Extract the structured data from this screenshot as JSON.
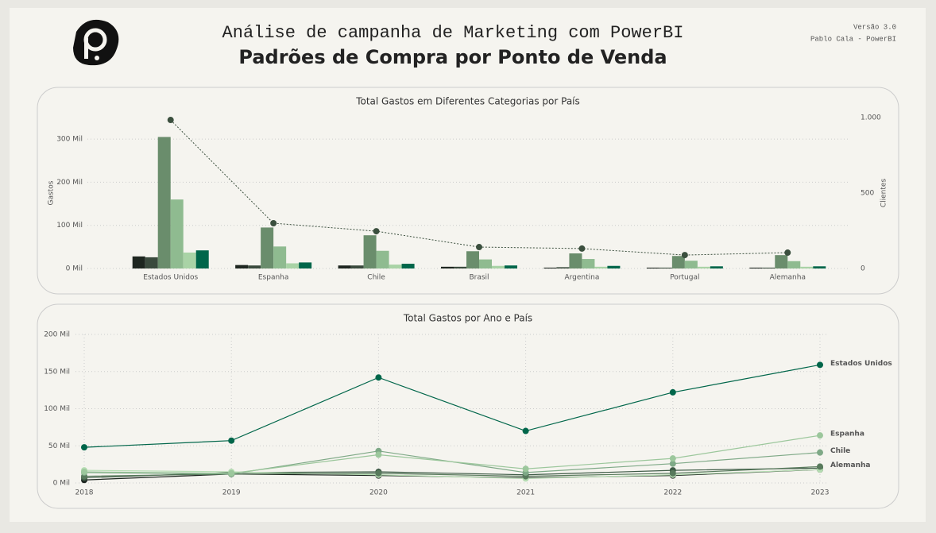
{
  "header": {
    "title": "Análise de campanha de Marketing com PowerBI",
    "subtitle": "Padrões de Compra por Ponto de Venda",
    "version": "Versão 3.0",
    "author": "Pablo Cala - PowerBI"
  },
  "chart_data": [
    {
      "type": "bar",
      "title": "Total Gastos em Diferentes Categorias por País",
      "y_label": "Gastos",
      "y2_label": "Clientes",
      "categories": [
        "Estados Unidos",
        "Espanha",
        "Chile",
        "Brasil",
        "Argentina",
        "Portugal",
        "Alemanha"
      ],
      "series": [
        {
          "color": "#1e2620",
          "values": [
            28000,
            8000,
            7000,
            4000,
            2000,
            2000,
            2000
          ]
        },
        {
          "color": "#3a4a3d",
          "values": [
            26000,
            7000,
            7000,
            4000,
            3000,
            2000,
            2000
          ]
        },
        {
          "color": "#6a8d6c",
          "values": [
            305000,
            95000,
            77000,
            40000,
            35000,
            29000,
            31000
          ]
        },
        {
          "color": "#8fbb90",
          "values": [
            160000,
            51000,
            41000,
            21000,
            22000,
            18000,
            17000
          ]
        },
        {
          "color": "#a9d3a6",
          "values": [
            37000,
            12000,
            9000,
            6000,
            4000,
            4000,
            4000
          ]
        },
        {
          "color": "#00664a",
          "values": [
            42000,
            14000,
            11000,
            7000,
            6000,
            5000,
            5000
          ]
        },
        {
          "type": "line",
          "axis": "y2",
          "color": "#3b4f3e",
          "line_style": "dotted",
          "values": [
            984,
            300,
            247,
            142,
            132,
            89,
            105
          ]
        }
      ],
      "ylim": [
        0,
        350000
      ],
      "yticks": [
        {
          "value": 0,
          "label": "0 Mil"
        },
        {
          "value": 100000,
          "label": "100 Mil"
        },
        {
          "value": 200000,
          "label": "200 Mil"
        },
        {
          "value": 300000,
          "label": "300 Mil"
        }
      ],
      "y2lim": [
        0,
        1000
      ],
      "y2ticks": [
        0,
        500,
        {
          "value": 1000,
          "label": "1.000"
        }
      ],
      "grid": true
    },
    {
      "type": "line",
      "title": "Total Gastos por Ano e País",
      "x": [
        2018,
        2019,
        2020,
        2021,
        2022,
        2023
      ],
      "xlim": [
        2018,
        2023
      ],
      "xticks": [
        2018,
        2019,
        2020,
        2021,
        2022,
        2023
      ],
      "ylim": [
        0,
        200000
      ],
      "yticks": [
        {
          "value": 0,
          "label": "0 Mil"
        },
        {
          "value": 50000,
          "label": "50 Mil"
        },
        {
          "value": 100000,
          "label": "100 Mil"
        },
        {
          "value": 150000,
          "label": "150 Mil"
        },
        {
          "value": 200000,
          "label": "200 Mil"
        }
      ],
      "grid": true,
      "series": [
        {
          "color": "#1e2620",
          "values": [
            4000,
            12000,
            10000,
            7000,
            10000,
            18000
          ]
        },
        {
          "color": "#3d5a45",
          "values": [
            7000,
            14000,
            15000,
            11000,
            17000,
            20000
          ]
        },
        {
          "color": "#b5dcb2",
          "values": [
            17000,
            15000,
            11000,
            6000,
            11000,
            18000
          ]
        },
        {
          "name": "Alemanha",
          "color": "#587a5c",
          "values": [
            9000,
            12000,
            13000,
            9000,
            13000,
            22000
          ]
        },
        {
          "name": "Chile",
          "color": "#7fa987",
          "values": [
            14000,
            12000,
            43000,
            14000,
            26000,
            41000
          ]
        },
        {
          "name": "Espanha",
          "color": "#9cc79c",
          "values": [
            15000,
            13000,
            38000,
            19000,
            33000,
            64000
          ]
        },
        {
          "name": "Estados Unidos",
          "color": "#00664a",
          "values": [
            48000,
            57000,
            142000,
            70000,
            122000,
            159000
          ]
        }
      ]
    }
  ]
}
